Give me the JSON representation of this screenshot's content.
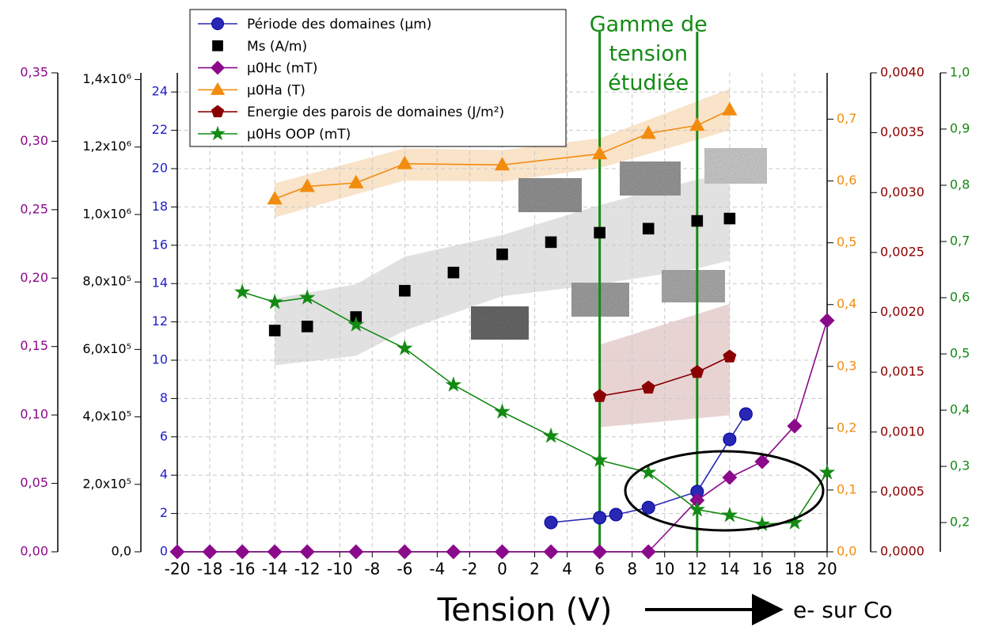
{
  "chart_data": {
    "type": "line",
    "x_label": "Tension (V)",
    "arrow_label": "e- sur Co",
    "annotation": {
      "lines": [
        "Gamme de",
        "tension",
        "étudiée"
      ],
      "color": "#138a13"
    },
    "vlines": [
      6,
      12
    ],
    "xlim": [
      -20,
      20
    ],
    "xticks": [
      -20,
      -18,
      -16,
      -14,
      -12,
      -10,
      -8,
      -6,
      -4,
      -2,
      0,
      2,
      4,
      6,
      8,
      10,
      12,
      14,
      16,
      18,
      20
    ],
    "grid": true,
    "y_axes": [
      {
        "side": "left",
        "color": "#8b0a8b",
        "ylim": [
          0,
          0.35
        ],
        "yticks": [
          {
            "value": 0,
            "label": "0,00"
          },
          {
            "value": 0.05,
            "label": "0,05"
          },
          {
            "value": 0.1,
            "label": "0,10"
          },
          {
            "value": 0.15,
            "label": "0,15"
          },
          {
            "value": 0.2,
            "label": "0,20"
          },
          {
            "value": 0.25,
            "label": "0,25"
          },
          {
            "value": 0.3,
            "label": "0,30"
          },
          {
            "value": 0.35,
            "label": "0,35"
          }
        ]
      },
      {
        "side": "left",
        "color": "#000000",
        "ylim": [
          0,
          1420000
        ],
        "yticks": [
          {
            "value": 0,
            "label": "0,0"
          },
          {
            "value": 200000,
            "label": "2,0x10⁵"
          },
          {
            "value": 400000,
            "label": "4,0x10⁵"
          },
          {
            "value": 600000,
            "label": "6,0x10⁵"
          },
          {
            "value": 800000,
            "label": "8,0x10⁵"
          },
          {
            "value": 1000000,
            "label": "1,0x10⁶"
          },
          {
            "value": 1200000,
            "label": "1,2x10⁶"
          },
          {
            "value": 1400000,
            "label": "1,4x10⁶"
          }
        ]
      },
      {
        "side": "left",
        "color": "#1e1ec8",
        "ylim": [
          0,
          25
        ],
        "yticks": [
          0,
          2,
          4,
          6,
          8,
          10,
          12,
          14,
          16,
          18,
          20,
          22,
          24
        ]
      },
      {
        "side": "right",
        "color": "#f28c0f",
        "ylim": [
          0,
          0.775
        ],
        "yticks": [
          {
            "value": 0,
            "label": "0,0"
          },
          {
            "value": 0.1,
            "label": "0,1"
          },
          {
            "value": 0.2,
            "label": "0,2"
          },
          {
            "value": 0.3,
            "label": "0,3"
          },
          {
            "value": 0.4,
            "label": "0,4"
          },
          {
            "value": 0.5,
            "label": "0,5"
          },
          {
            "value": 0.6,
            "label": "0,6"
          },
          {
            "value": 0.7,
            "label": "0,7"
          }
        ]
      },
      {
        "side": "right",
        "color": "#8b0000",
        "ylim": [
          0,
          0.004
        ],
        "yticks": [
          {
            "value": 0,
            "label": "0,0000"
          },
          {
            "value": 0.0005,
            "label": "0,0005"
          },
          {
            "value": 0.001,
            "label": "0,0010"
          },
          {
            "value": 0.0015,
            "label": "0,0015"
          },
          {
            "value": 0.002,
            "label": "0,0020"
          },
          {
            "value": 0.0025,
            "label": "0,0025"
          },
          {
            "value": 0.003,
            "label": "0,0030"
          },
          {
            "value": 0.0035,
            "label": "0,0035"
          },
          {
            "value": 0.004,
            "label": "0,0040"
          }
        ]
      },
      {
        "side": "right",
        "color": "#138a13",
        "ylim": [
          0.148,
          1.0
        ],
        "yticks": [
          {
            "value": 0.2,
            "label": "0,2"
          },
          {
            "value": 0.3,
            "label": "0,3"
          },
          {
            "value": 0.4,
            "label": "0,4"
          },
          {
            "value": 0.5,
            "label": "0,5"
          },
          {
            "value": 0.6,
            "label": "0,6"
          },
          {
            "value": 0.7,
            "label": "0,7"
          },
          {
            "value": 0.8,
            "label": "0,8"
          },
          {
            "value": 0.9,
            "label": "0,9"
          },
          {
            "value": 1.0,
            "label": "1,0"
          }
        ]
      }
    ],
    "series": [
      {
        "name": "Période des domaines (µm)",
        "color": "#2828b4",
        "marker": "circle",
        "line": true,
        "axis": 2,
        "x": [
          3,
          6,
          7,
          9,
          12,
          14,
          15
        ],
        "values": [
          1.53,
          1.78,
          1.94,
          2.31,
          3.14,
          5.87,
          7.19
        ]
      },
      {
        "name": "Ms (A/m)",
        "color": "#000000",
        "marker": "square",
        "line": false,
        "axis": 1,
        "x": [
          -14,
          -12,
          -9,
          -6,
          -3,
          0,
          3,
          6,
          9,
          12,
          14
        ],
        "values": [
          656000,
          668000,
          696000,
          774000,
          828000,
          882000,
          918000,
          946000,
          958000,
          981000,
          988000
        ],
        "band": {
          "color": "#d9d9d9",
          "x": [
            -14,
            -9,
            -6,
            0,
            6,
            12,
            14
          ],
          "upper": [
            751000,
            793000,
            875000,
            939000,
            1028000,
            1104000,
            1118000
          ],
          "lower": [
            553000,
            581000,
            656000,
            758000,
            793000,
            840000,
            864000
          ]
        }
      },
      {
        "name": "µ0Hc (mT)",
        "color": "#8b0a8b",
        "marker": "diamond",
        "line": true,
        "axis": 0,
        "x": [
          -20,
          -18,
          -16,
          -14,
          -12,
          -9,
          -6,
          -3,
          0,
          3,
          6,
          9,
          12,
          14,
          16,
          18,
          20
        ],
        "values": [
          0,
          0,
          0,
          0,
          0,
          0,
          0,
          0,
          0,
          0,
          0,
          0,
          0.0376,
          0.0543,
          0.0659,
          0.0919,
          0.169
        ]
      },
      {
        "name": "µ0Ha (T)",
        "color": "#f28c0f",
        "marker": "triangle",
        "line": true,
        "axis": 3,
        "x": [
          -14,
          -12,
          -9,
          -6,
          0,
          6,
          9,
          12,
          14
        ],
        "values": [
          0.571,
          0.591,
          0.597,
          0.628,
          0.626,
          0.644,
          0.677,
          0.69,
          0.715
        ],
        "band": {
          "color": "#f8dcbc",
          "x": [
            -14,
            -6,
            0,
            6,
            14
          ],
          "upper": [
            0.596,
            0.653,
            0.65,
            0.669,
            0.749
          ],
          "lower": [
            0.541,
            0.601,
            0.599,
            0.621,
            0.682
          ]
        }
      },
      {
        "name": "Energie des parois de domaines (J/m²)",
        "color": "#8b0000",
        "marker": "pentagon",
        "line": true,
        "axis": 4,
        "x": [
          6,
          9,
          12,
          14
        ],
        "values": [
          0.0013,
          0.00137,
          0.0015,
          0.00163
        ],
        "band": {
          "color": "#e2c8c8",
          "x": [
            6,
            14
          ],
          "upper": [
            0.00173,
            0.00207
          ],
          "lower": [
            0.00104,
            0.00114
          ]
        }
      },
      {
        "name": "µ0Hs OOP (mT)",
        "color": "#138a13",
        "marker": "star",
        "line": true,
        "axis": 5,
        "x": [
          -16,
          -14,
          -12,
          -9,
          -6,
          -3,
          0,
          3,
          6,
          9,
          12,
          14,
          16,
          18,
          20
        ],
        "values": [
          0.61,
          0.592,
          0.6,
          0.552,
          0.51,
          0.445,
          0.397,
          0.354,
          0.311,
          0.289,
          0.223,
          0.213,
          0.197,
          0.2,
          0.289
        ]
      }
    ]
  }
}
